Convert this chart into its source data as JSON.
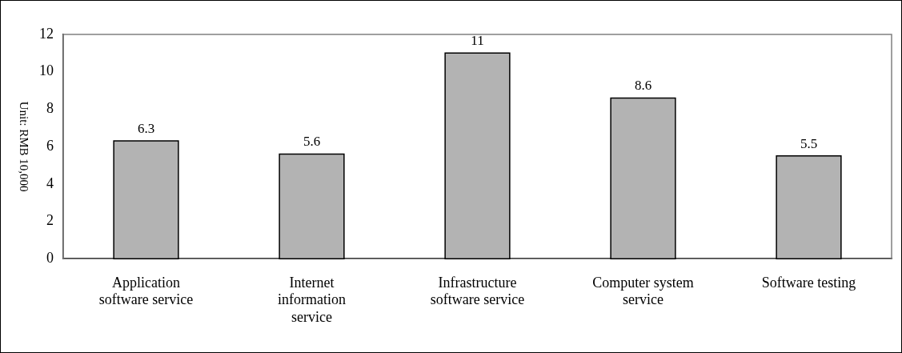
{
  "chart_data": {
    "type": "bar",
    "ylabel": "Unit: RMB 10,000",
    "categories": [
      "Application software service",
      "Internet information service",
      "Infrastructure software service",
      "Computer system service",
      "Software testing"
    ],
    "values": [
      6.3,
      5.6,
      11,
      8.6,
      5.5
    ],
    "color": "#b3b3b3",
    "ylim": [
      0,
      12
    ],
    "yticks": [
      0,
      2,
      4,
      6,
      8,
      10,
      12
    ],
    "grid": false,
    "legend": false,
    "data_labels": true
  }
}
